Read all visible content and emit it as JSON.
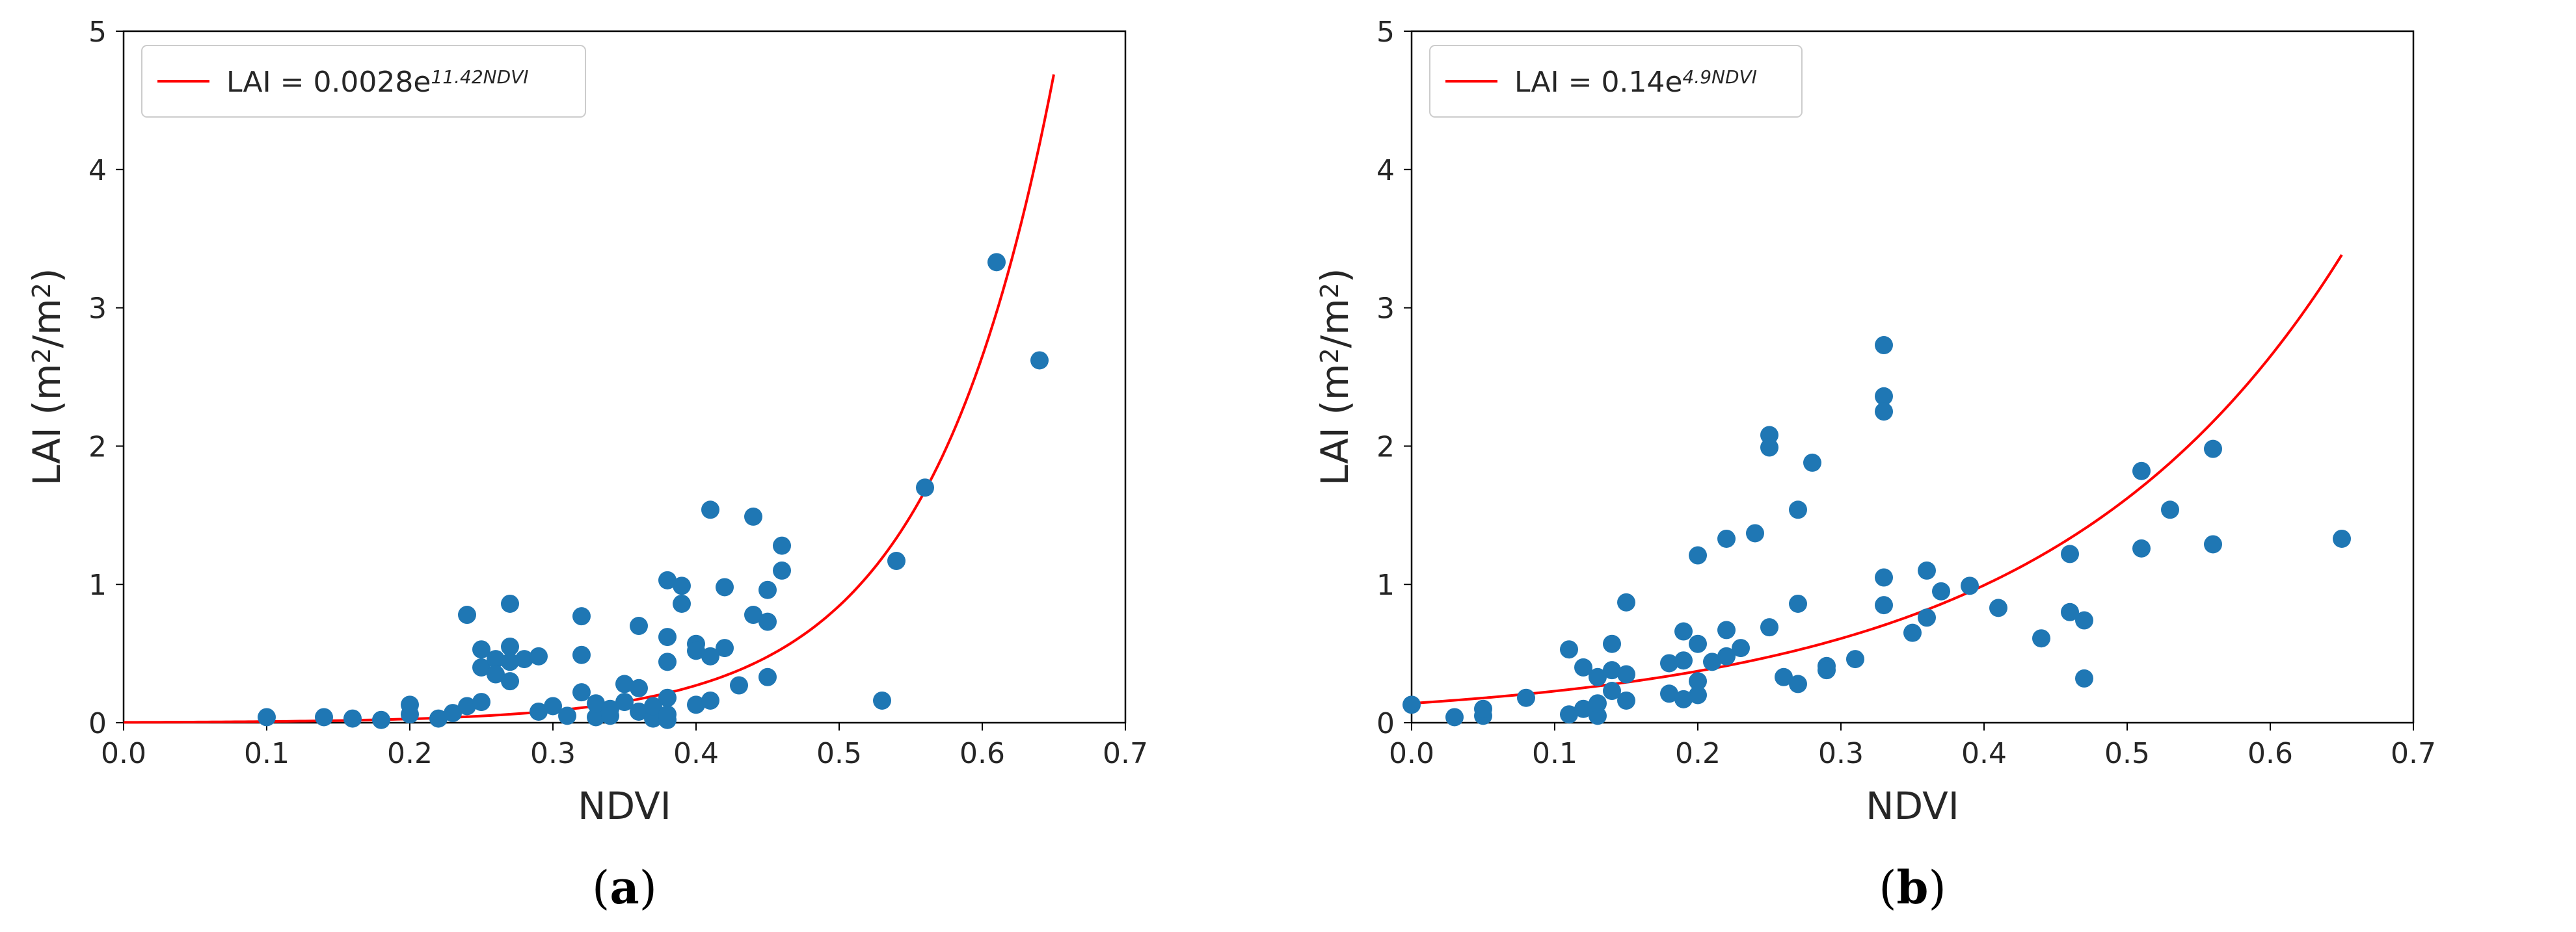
{
  "chart_data": [
    {
      "type": "scatter",
      "panel": "a",
      "caption_letter": "a",
      "xlabel": "NDVI",
      "ylabel_base": "LAI (m",
      "ylabel_sup1": "2",
      "ylabel_mid": "/m",
      "ylabel_sup2": "2",
      "ylabel_end": ")",
      "xlim": [
        0.0,
        0.7
      ],
      "ylim": [
        0,
        5
      ],
      "xticks": [
        "0.0",
        "0.1",
        "0.2",
        "0.3",
        "0.4",
        "0.5",
        "0.6",
        "0.7"
      ],
      "yticks": [
        "0",
        "1",
        "2",
        "3",
        "4",
        "5"
      ],
      "grid": false,
      "legend_position": "top-left",
      "legend_text": "LAI = 0.0028e",
      "legend_exponent": "11.42NDVI",
      "fit": {
        "a": 0.0028,
        "b": 11.42,
        "x_start": 0.0,
        "x_end": 0.65,
        "color": "#ff0000"
      },
      "points_color": "#1f77b4",
      "points": [
        [
          0.1,
          0.04
        ],
        [
          0.14,
          0.04
        ],
        [
          0.16,
          0.03
        ],
        [
          0.18,
          0.02
        ],
        [
          0.2,
          0.06
        ],
        [
          0.2,
          0.13
        ],
        [
          0.22,
          0.03
        ],
        [
          0.23,
          0.07
        ],
        [
          0.24,
          0.12
        ],
        [
          0.25,
          0.15
        ],
        [
          0.24,
          0.78
        ],
        [
          0.25,
          0.53
        ],
        [
          0.25,
          0.4
        ],
        [
          0.26,
          0.46
        ],
        [
          0.26,
          0.35
        ],
        [
          0.27,
          0.3
        ],
        [
          0.27,
          0.44
        ],
        [
          0.27,
          0.55
        ],
        [
          0.27,
          0.86
        ],
        [
          0.28,
          0.46
        ],
        [
          0.29,
          0.48
        ],
        [
          0.29,
          0.08
        ],
        [
          0.3,
          0.12
        ],
        [
          0.31,
          0.05
        ],
        [
          0.32,
          0.77
        ],
        [
          0.32,
          0.49
        ],
        [
          0.32,
          0.22
        ],
        [
          0.33,
          0.04
        ],
        [
          0.33,
          0.14
        ],
        [
          0.34,
          0.1
        ],
        [
          0.34,
          0.05
        ],
        [
          0.35,
          0.28
        ],
        [
          0.35,
          0.15
        ],
        [
          0.36,
          0.7
        ],
        [
          0.36,
          0.25
        ],
        [
          0.36,
          0.08
        ],
        [
          0.37,
          0.03
        ],
        [
          0.37,
          0.12
        ],
        [
          0.38,
          0.02
        ],
        [
          0.38,
          0.06
        ],
        [
          0.38,
          0.18
        ],
        [
          0.38,
          0.44
        ],
        [
          0.38,
          0.62
        ],
        [
          0.38,
          1.03
        ],
        [
          0.39,
          0.99
        ],
        [
          0.39,
          0.86
        ],
        [
          0.4,
          0.57
        ],
        [
          0.4,
          0.52
        ],
        [
          0.4,
          0.13
        ],
        [
          0.41,
          0.48
        ],
        [
          0.41,
          0.16
        ],
        [
          0.41,
          1.54
        ],
        [
          0.42,
          0.98
        ],
        [
          0.42,
          0.54
        ],
        [
          0.43,
          0.27
        ],
        [
          0.44,
          1.49
        ],
        [
          0.44,
          0.78
        ],
        [
          0.45,
          0.73
        ],
        [
          0.45,
          0.96
        ],
        [
          0.45,
          0.33
        ],
        [
          0.46,
          1.1
        ],
        [
          0.46,
          1.28
        ],
        [
          0.53,
          0.16
        ],
        [
          0.54,
          1.17
        ],
        [
          0.56,
          1.7
        ],
        [
          0.61,
          3.33
        ],
        [
          0.64,
          2.62
        ]
      ]
    },
    {
      "type": "scatter",
      "panel": "b",
      "caption_letter": "b",
      "xlabel": "NDVI",
      "ylabel_base": "LAI (m",
      "ylabel_sup1": "2",
      "ylabel_mid": "/m",
      "ylabel_sup2": "2",
      "ylabel_end": ")",
      "xlim": [
        0.0,
        0.7
      ],
      "ylim": [
        0,
        5
      ],
      "xticks": [
        "0.0",
        "0.1",
        "0.2",
        "0.3",
        "0.4",
        "0.5",
        "0.6",
        "0.7"
      ],
      "yticks": [
        "0",
        "1",
        "2",
        "3",
        "4",
        "5"
      ],
      "grid": false,
      "legend_position": "top-left",
      "legend_text": "LAI = 0.14e",
      "legend_exponent": "4.9NDVI",
      "fit": {
        "a": 0.14,
        "b": 4.9,
        "x_start": 0.0,
        "x_end": 0.65,
        "color": "#ff0000"
      },
      "points_color": "#1f77b4",
      "points": [
        [
          0.0,
          0.13
        ],
        [
          0.03,
          0.04
        ],
        [
          0.05,
          0.05
        ],
        [
          0.05,
          0.1
        ],
        [
          0.08,
          0.18
        ],
        [
          0.11,
          0.06
        ],
        [
          0.11,
          0.53
        ],
        [
          0.12,
          0.4
        ],
        [
          0.12,
          0.1
        ],
        [
          0.13,
          0.33
        ],
        [
          0.13,
          0.05
        ],
        [
          0.13,
          0.14
        ],
        [
          0.14,
          0.38
        ],
        [
          0.14,
          0.57
        ],
        [
          0.14,
          0.23
        ],
        [
          0.15,
          0.87
        ],
        [
          0.15,
          0.35
        ],
        [
          0.15,
          0.16
        ],
        [
          0.18,
          0.43
        ],
        [
          0.18,
          0.21
        ],
        [
          0.19,
          0.66
        ],
        [
          0.19,
          0.45
        ],
        [
          0.19,
          0.17
        ],
        [
          0.2,
          1.21
        ],
        [
          0.2,
          0.57
        ],
        [
          0.2,
          0.3
        ],
        [
          0.2,
          0.2
        ],
        [
          0.21,
          0.44
        ],
        [
          0.22,
          1.33
        ],
        [
          0.22,
          0.67
        ],
        [
          0.22,
          0.48
        ],
        [
          0.23,
          0.54
        ],
        [
          0.24,
          1.37
        ],
        [
          0.25,
          2.08
        ],
        [
          0.25,
          1.99
        ],
        [
          0.25,
          0.69
        ],
        [
          0.26,
          0.33
        ],
        [
          0.27,
          1.54
        ],
        [
          0.27,
          0.86
        ],
        [
          0.27,
          0.28
        ],
        [
          0.28,
          1.88
        ],
        [
          0.29,
          0.41
        ],
        [
          0.29,
          0.38
        ],
        [
          0.31,
          0.46
        ],
        [
          0.33,
          2.73
        ],
        [
          0.33,
          2.36
        ],
        [
          0.33,
          2.25
        ],
        [
          0.33,
          1.05
        ],
        [
          0.33,
          0.85
        ],
        [
          0.35,
          0.65
        ],
        [
          0.36,
          1.1
        ],
        [
          0.36,
          0.76
        ],
        [
          0.37,
          0.95
        ],
        [
          0.39,
          0.99
        ],
        [
          0.41,
          0.83
        ],
        [
          0.44,
          0.61
        ],
        [
          0.46,
          1.22
        ],
        [
          0.46,
          0.8
        ],
        [
          0.47,
          0.74
        ],
        [
          0.47,
          0.32
        ],
        [
          0.51,
          1.82
        ],
        [
          0.51,
          1.26
        ],
        [
          0.53,
          1.54
        ],
        [
          0.56,
          1.98
        ],
        [
          0.56,
          1.29
        ],
        [
          0.65,
          1.33
        ]
      ]
    }
  ]
}
